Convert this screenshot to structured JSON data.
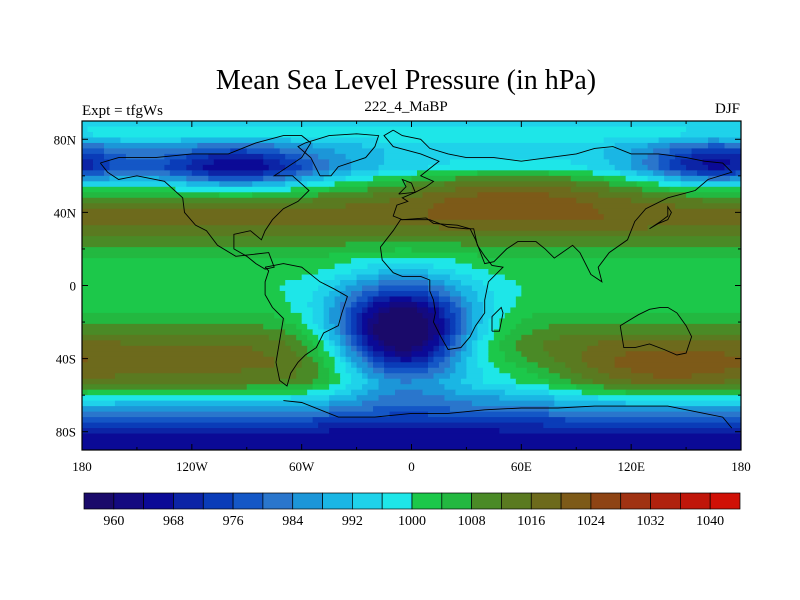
{
  "title": "Mean Sea Level Pressure (in hPa)",
  "subtitle_left": "Expt = tfgWs",
  "subtitle_center": "222_4_MaBP",
  "subtitle_right": "DJF",
  "chart_data": {
    "type": "heatmap",
    "title": "Mean Sea Level Pressure (in hPa)",
    "x_tick_labels": [
      "180",
      "120W",
      "60W",
      "0",
      "60E",
      "120E",
      "180"
    ],
    "x_ticks": [
      -180,
      -120,
      -60,
      0,
      60,
      120,
      180
    ],
    "y_tick_labels": [
      "80N",
      "40N",
      "0",
      "40S",
      "80S"
    ],
    "y_ticks": [
      80,
      40,
      0,
      -40,
      -80
    ],
    "xlim": [
      -180,
      180
    ],
    "ylim": [
      -90,
      90
    ],
    "colorbar_labels": [
      "960",
      "968",
      "976",
      "984",
      "992",
      "1000",
      "1008",
      "1016",
      "1024",
      "1032",
      "1040"
    ],
    "levels": [
      956,
      960,
      964,
      968,
      972,
      976,
      980,
      984,
      988,
      992,
      996,
      1000,
      1004,
      1008,
      1012,
      1016,
      1020,
      1024,
      1028,
      1032,
      1036,
      1040
    ],
    "colors": [
      "#1a0a6a",
      "#140a80",
      "#0b0a96",
      "#0c24a6",
      "#0a3cb8",
      "#1457c6",
      "#2a76cc",
      "#1c96d8",
      "#1ab6e4",
      "#1fd2ea",
      "#1ee6e8",
      "#1cc84a",
      "#23b840",
      "#4a8a26",
      "#5a7a20",
      "#6d6a1c",
      "#7d5a18",
      "#8e4414",
      "#a03212",
      "#b0220e",
      "#c0160a",
      "#d01006"
    ],
    "bands": [
      {
        "lat": 90,
        "value": 994
      },
      {
        "lat": 83,
        "value": 1000
      },
      {
        "lat": 76,
        "value": 992
      },
      {
        "lat": 64,
        "value": 990
      },
      {
        "lat": 55,
        "value": 1002
      },
      {
        "lat": 45,
        "value": 1014
      },
      {
        "lat": 38,
        "value": 1018
      },
      {
        "lat": 32,
        "value": 1016
      },
      {
        "lat": 24,
        "value": 1010
      },
      {
        "lat": 14,
        "value": 1004
      },
      {
        "lat": 0,
        "value": 1001
      },
      {
        "lat": -12,
        "value": 1003
      },
      {
        "lat": -24,
        "value": 1010
      },
      {
        "lat": -32,
        "value": 1016
      },
      {
        "lat": -42,
        "value": 1018
      },
      {
        "lat": -52,
        "value": 1014
      },
      {
        "lat": -58,
        "value": 1004
      },
      {
        "lat": -62,
        "value": 996
      },
      {
        "lat": -68,
        "value": 986
      },
      {
        "lat": -74,
        "value": 976
      },
      {
        "lat": -80,
        "value": 968
      },
      {
        "lat": -90,
        "value": 964
      }
    ],
    "anomalies": [
      {
        "lon": -95,
        "lat": 65,
        "rlon": 45,
        "rlat": 12,
        "amp": -26
      },
      {
        "lon": 165,
        "lat": 67,
        "rlon": 38,
        "rlat": 12,
        "amp": -24
      },
      {
        "lon": 55,
        "lat": 55,
        "rlon": 70,
        "rlat": 15,
        "amp": 14
      },
      {
        "lon": -5,
        "lat": -28,
        "rlon": 38,
        "rlat": 28,
        "amp": -60
      },
      {
        "lon": 55,
        "lat": -50,
        "rlon": 40,
        "rlat": 16,
        "amp": -12
      },
      {
        "lon": 140,
        "lat": -45,
        "rlon": 45,
        "rlat": 14,
        "amp": 6
      }
    ],
    "coastline": [
      [
        [
          -10,
          85
        ],
        [
          -5,
          82
        ],
        [
          5,
          80
        ],
        [
          10,
          75
        ],
        [
          20,
          72
        ],
        [
          30,
          70
        ],
        [
          45,
          70
        ],
        [
          60,
          68
        ],
        [
          75,
          70
        ],
        [
          90,
          72
        ],
        [
          100,
          75
        ],
        [
          110,
          76
        ],
        [
          120,
          72
        ],
        [
          135,
          72
        ],
        [
          150,
          70
        ],
        [
          160,
          68
        ],
        [
          170,
          67
        ],
        [
          175,
          62
        ],
        [
          162,
          58
        ],
        [
          155,
          52
        ],
        [
          140,
          48
        ],
        [
          128,
          42
        ],
        [
          122,
          35
        ],
        [
          118,
          25
        ],
        [
          108,
          18
        ],
        [
          102,
          10
        ],
        [
          104,
          2
        ],
        [
          98,
          6
        ],
        [
          92,
          18
        ],
        [
          88,
          22
        ],
        [
          78,
          15
        ],
        [
          73,
          20
        ],
        [
          68,
          24
        ],
        [
          58,
          24
        ],
        [
          52,
          20
        ],
        [
          45,
          13
        ],
        [
          40,
          12
        ],
        [
          35,
          25
        ],
        [
          32,
          31
        ],
        [
          25,
          33
        ],
        [
          12,
          34
        ],
        [
          8,
          37
        ],
        [
          -5,
          36
        ],
        [
          -10,
          38
        ],
        [
          -8,
          44
        ],
        [
          -2,
          46
        ],
        [
          -5,
          48
        ],
        [
          2,
          51
        ],
        [
          8,
          54
        ],
        [
          12,
          57
        ],
        [
          5,
          60
        ],
        [
          10,
          64
        ],
        [
          15,
          68
        ],
        [
          5,
          72
        ],
        [
          -10,
          76
        ],
        [
          -15,
          82
        ],
        [
          -10,
          85
        ]
      ],
      [
        [
          -170,
          67
        ],
        [
          -160,
          70
        ],
        [
          -140,
          70
        ],
        [
          -120,
          72
        ],
        [
          -100,
          72
        ],
        [
          -85,
          78
        ],
        [
          -70,
          82
        ],
        [
          -60,
          82
        ],
        [
          -55,
          78
        ],
        [
          -60,
          70
        ],
        [
          -75,
          60
        ],
        [
          -65,
          60
        ],
        [
          -56,
          52
        ],
        [
          -62,
          46
        ],
        [
          -70,
          42
        ],
        [
          -76,
          36
        ],
        [
          -80,
          30
        ],
        [
          -82,
          25
        ],
        [
          -88,
          30
        ],
        [
          -97,
          28
        ],
        [
          -97,
          20
        ],
        [
          -90,
          16
        ],
        [
          -85,
          12
        ],
        [
          -80,
          9
        ],
        [
          -75,
          10
        ],
        [
          -78,
          18
        ],
        [
          -96,
          16
        ],
        [
          -106,
          22
        ],
        [
          -112,
          30
        ],
        [
          -118,
          33
        ],
        [
          -124,
          40
        ],
        [
          -125,
          48
        ],
        [
          -135,
          57
        ],
        [
          -150,
          60
        ],
        [
          -160,
          58
        ],
        [
          -166,
          62
        ],
        [
          -170,
          67
        ]
      ],
      [
        [
          -80,
          10
        ],
        [
          -70,
          12
        ],
        [
          -60,
          10
        ],
        [
          -50,
          2
        ],
        [
          -42,
          -2
        ],
        [
          -35,
          -6
        ],
        [
          -38,
          -15
        ],
        [
          -40,
          -22
        ],
        [
          -48,
          -26
        ],
        [
          -52,
          -34
        ],
        [
          -58,
          -38
        ],
        [
          -62,
          -42
        ],
        [
          -66,
          -48
        ],
        [
          -68,
          -55
        ],
        [
          -72,
          -52
        ],
        [
          -74,
          -42
        ],
        [
          -72,
          -30
        ],
        [
          -70,
          -18
        ],
        [
          -76,
          -12
        ],
        [
          -80,
          -5
        ],
        [
          -80,
          2
        ],
        [
          -78,
          8
        ],
        [
          -80,
          10
        ]
      ],
      [
        [
          -17,
          21
        ],
        [
          -16,
          14
        ],
        [
          -10,
          7
        ],
        [
          -5,
          5
        ],
        [
          5,
          5
        ],
        [
          10,
          3
        ],
        [
          10,
          -3
        ],
        [
          12,
          -8
        ],
        [
          13,
          -15
        ],
        [
          12,
          -20
        ],
        [
          16,
          -28
        ],
        [
          20,
          -35
        ],
        [
          27,
          -34
        ],
        [
          32,
          -28
        ],
        [
          35,
          -22
        ],
        [
          40,
          -15
        ],
        [
          40,
          -8
        ],
        [
          42,
          2
        ],
        [
          50,
          10
        ],
        [
          44,
          11
        ],
        [
          40,
          16
        ],
        [
          36,
          22
        ],
        [
          34,
          31
        ],
        [
          30,
          31
        ],
        [
          20,
          32
        ],
        [
          10,
          36
        ],
        [
          0,
          36
        ],
        [
          -6,
          36
        ],
        [
          -10,
          30
        ],
        [
          -17,
          21
        ]
      ],
      [
        [
          114,
          -22
        ],
        [
          116,
          -34
        ],
        [
          122,
          -34
        ],
        [
          130,
          -32
        ],
        [
          138,
          -35
        ],
        [
          145,
          -38
        ],
        [
          150,
          -37
        ],
        [
          153,
          -28
        ],
        [
          150,
          -22
        ],
        [
          145,
          -15
        ],
        [
          140,
          -12
        ],
        [
          136,
          -12
        ],
        [
          130,
          -13
        ],
        [
          124,
          -16
        ],
        [
          114,
          -22
        ]
      ],
      [
        [
          -50,
          60
        ],
        [
          -44,
          60
        ],
        [
          -40,
          65
        ],
        [
          -25,
          70
        ],
        [
          -20,
          76
        ],
        [
          -18,
          82
        ],
        [
          -30,
          83
        ],
        [
          -45,
          82
        ],
        [
          -58,
          78
        ],
        [
          -62,
          76
        ],
        [
          -55,
          70
        ],
        [
          -50,
          60
        ]
      ],
      [
        [
          -70,
          -63
        ],
        [
          -60,
          -64
        ],
        [
          -40,
          -72
        ],
        [
          -20,
          -72
        ],
        [
          0,
          -70
        ],
        [
          20,
          -70
        ],
        [
          40,
          -68
        ],
        [
          60,
          -67
        ],
        [
          80,
          -67
        ],
        [
          100,
          -66
        ],
        [
          120,
          -66
        ],
        [
          140,
          -66
        ],
        [
          160,
          -70
        ],
        [
          170,
          -72
        ],
        [
          175,
          -78
        ]
      ],
      [
        [
          -7,
          50
        ],
        [
          2,
          51
        ],
        [
          0,
          56
        ],
        [
          -5,
          58
        ],
        [
          -3,
          54
        ],
        [
          -7,
          50
        ]
      ],
      [
        [
          130,
          31
        ],
        [
          135,
          34
        ],
        [
          140,
          36
        ],
        [
          142,
          40
        ],
        [
          140,
          43
        ],
        [
          140,
          38
        ],
        [
          136,
          35
        ],
        [
          130,
          31
        ]
      ],
      [
        [
          44,
          -25
        ],
        [
          48,
          -25
        ],
        [
          50,
          -15
        ],
        [
          49,
          -12
        ],
        [
          44,
          -17
        ],
        [
          44,
          -25
        ]
      ]
    ]
  }
}
